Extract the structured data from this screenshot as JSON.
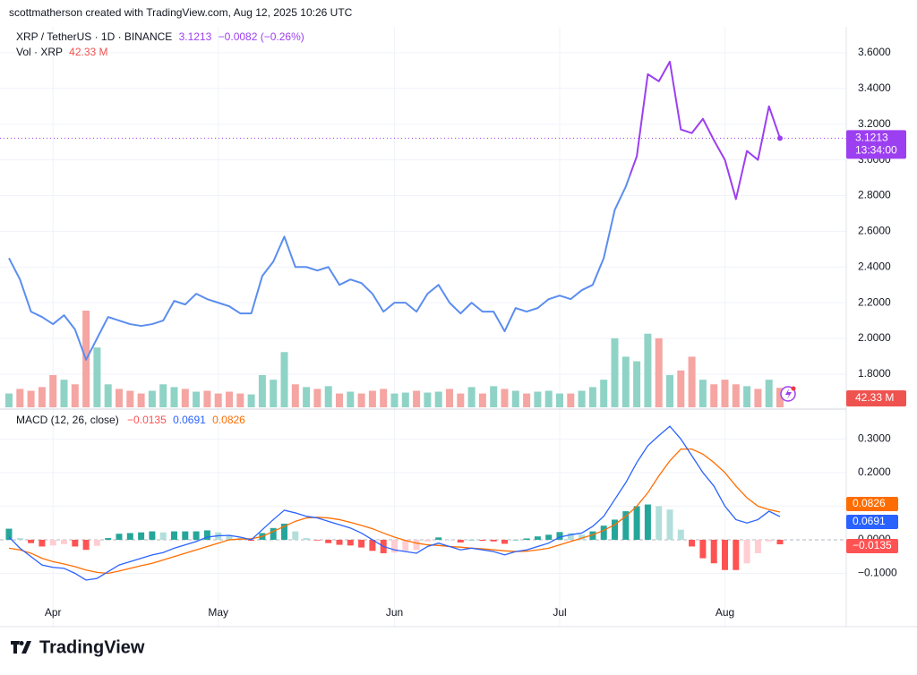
{
  "header": {
    "attribution": "scottmatherson created with TradingView.com, Aug 12, 2025 10:26 UTC"
  },
  "footer": {
    "logo": "TradingView"
  },
  "chart_data": [
    {
      "type": "line",
      "title": "XRP / TetherUS · 1D · BINANCE",
      "change": "−0.0082 (−0.26%)",
      "countdown": "13:34:00",
      "color": "#5b8def",
      "recent_color": "#9c3ff0",
      "grid": true,
      "categories": [
        null,
        null,
        null,
        null,
        "Apr",
        null,
        null,
        null,
        null,
        null,
        null,
        null,
        null,
        null,
        null,
        null,
        null,
        null,
        null,
        "May",
        null,
        null,
        null,
        null,
        null,
        null,
        null,
        null,
        null,
        null,
        null,
        null,
        null,
        null,
        null,
        "Jun",
        null,
        null,
        null,
        null,
        null,
        null,
        null,
        null,
        null,
        null,
        null,
        null,
        null,
        null,
        "Jul",
        null,
        null,
        null,
        null,
        null,
        null,
        null,
        null,
        null,
        null,
        null,
        null,
        null,
        null,
        "Aug",
        null,
        null,
        null,
        null,
        null
      ],
      "values": [
        2.45,
        2.33,
        2.15,
        2.12,
        2.08,
        2.13,
        2.05,
        1.88,
        2.0,
        2.12,
        2.1,
        2.08,
        2.07,
        2.08,
        2.1,
        2.21,
        2.19,
        2.25,
        2.22,
        2.2,
        2.18,
        2.14,
        2.14,
        2.35,
        2.43,
        2.57,
        2.4,
        2.4,
        2.38,
        2.4,
        2.3,
        2.33,
        2.31,
        2.25,
        2.15,
        2.2,
        2.2,
        2.15,
        2.25,
        2.3,
        2.2,
        2.14,
        2.2,
        2.15,
        2.15,
        2.04,
        2.17,
        2.15,
        2.17,
        2.22,
        2.24,
        2.22,
        2.27,
        2.3,
        2.45,
        2.72,
        2.85,
        3.02,
        3.48,
        3.44,
        3.55,
        3.17,
        3.15,
        3.23,
        3.11,
        3.0,
        2.78,
        3.05,
        3.0,
        3.3,
        3.1213
      ],
      "ylim": [
        1.614,
        3.745
      ],
      "yticks": [
        {
          "value": 1.8,
          "label": "1.8000"
        },
        {
          "value": 2.0,
          "label": "2.0000"
        },
        {
          "value": 2.2,
          "label": "2.2000"
        },
        {
          "value": 2.4,
          "label": "2.4000"
        },
        {
          "value": 2.6,
          "label": "2.6000"
        },
        {
          "value": 2.8,
          "label": "2.8000"
        },
        {
          "value": 3.0,
          "label": "3.0000"
        },
        {
          "value": 3.2,
          "label": "3.2000"
        },
        {
          "value": 3.4,
          "label": "3.4000"
        },
        {
          "value": 3.6,
          "label": "3.6000"
        }
      ],
      "volume": {
        "title": "Vol · XRP",
        "colors": {
          "up": "#8fd3c6",
          "down": "#f5a5a2",
          "tag": "#ef5350"
        },
        "values": [
          30,
          40,
          36,
          44,
          70,
          60,
          50,
          210,
          130,
          50,
          40,
          36,
          30,
          36,
          50,
          44,
          40,
          34,
          36,
          30,
          34,
          30,
          28,
          70,
          60,
          120,
          50,
          44,
          40,
          46,
          30,
          34,
          30,
          36,
          40,
          30,
          32,
          36,
          32,
          34,
          40,
          30,
          44,
          30,
          46,
          40,
          36,
          30,
          34,
          36,
          30,
          30,
          36,
          44,
          60,
          150,
          110,
          100,
          160,
          150,
          70,
          80,
          110,
          60,
          50,
          60,
          50,
          46,
          40,
          60,
          42.33
        ],
        "value_labels": [
          null,
          null,
          null,
          null,
          null,
          null,
          null,
          null,
          null,
          null,
          null,
          null,
          null,
          null,
          null,
          null,
          null,
          null,
          null,
          null,
          null,
          null,
          null,
          null,
          null,
          null,
          null,
          null,
          null,
          null,
          null,
          null,
          null,
          null,
          null,
          null,
          null,
          null,
          null,
          null,
          null,
          null,
          null,
          null,
          null,
          null,
          null,
          null,
          null,
          null,
          null,
          null,
          null,
          null,
          null,
          null,
          null,
          null,
          null,
          null,
          null,
          null,
          null,
          null,
          null,
          null,
          null,
          null,
          null,
          null,
          "42.33 M"
        ]
      }
    },
    {
      "type": "macd",
      "title": "MACD (12, 26, close)",
      "grid": true,
      "ylim": [
        -0.232,
        0.381
      ],
      "yticks": [
        {
          "value": -0.1,
          "label": "−0.1000"
        },
        {
          "value": 0,
          "label": "0.0000"
        },
        {
          "value": 0.1,
          "label": "0.1000"
        },
        {
          "value": 0.2,
          "label": "0.2000"
        },
        {
          "value": 0.3,
          "label": "0.3000"
        }
      ],
      "histogram": {
        "colors": {
          "up_rising": "#26a69a",
          "up_falling": "#b2dfdb",
          "down_falling": "#ff5252",
          "down_rising": "#ffcdd2"
        },
        "values": [
          0.033,
          0.005,
          -0.01,
          -0.02,
          -0.017,
          -0.013,
          -0.02,
          -0.03,
          -0.018,
          0.005,
          0.018,
          0.02,
          0.022,
          0.025,
          0.022,
          0.025,
          0.025,
          0.025,
          0.028,
          0.022,
          0.013,
          0.006,
          -0.003,
          0.02,
          0.035,
          0.048,
          0.025,
          0.005,
          -0.002,
          -0.01,
          -0.015,
          -0.017,
          -0.023,
          -0.033,
          -0.04,
          -0.038,
          -0.033,
          -0.03,
          -0.005,
          0.007,
          0,
          -0.008,
          0,
          -0.003,
          -0.005,
          -0.012,
          0,
          0.004,
          0.01,
          0.015,
          0.023,
          0.02,
          0.015,
          0.025,
          0.042,
          0.06,
          0.085,
          0.1,
          0.105,
          0.1,
          0.09,
          0.03,
          -0.02,
          -0.055,
          -0.07,
          -0.09,
          -0.09,
          -0.07,
          -0.04,
          -0.005,
          -0.0135
        ],
        "value_labels": [
          null,
          null,
          null,
          null,
          null,
          null,
          null,
          null,
          null,
          null,
          null,
          null,
          null,
          null,
          null,
          null,
          null,
          null,
          null,
          null,
          null,
          null,
          null,
          null,
          null,
          null,
          null,
          null,
          null,
          null,
          null,
          null,
          null,
          null,
          null,
          null,
          null,
          null,
          null,
          null,
          null,
          null,
          null,
          null,
          null,
          null,
          null,
          null,
          null,
          null,
          null,
          null,
          null,
          null,
          null,
          null,
          null,
          null,
          null,
          null,
          null,
          null,
          null,
          null,
          null,
          null,
          null,
          null,
          null,
          null,
          "−0.0135"
        ]
      },
      "macd": {
        "color": "#2962ff",
        "values": [
          0.008,
          -0.025,
          -0.05,
          -0.075,
          -0.082,
          -0.085,
          -0.1,
          -0.12,
          -0.115,
          -0.095,
          -0.075,
          -0.065,
          -0.055,
          -0.045,
          -0.038,
          -0.025,
          -0.015,
          -0.005,
          0.008,
          0.012,
          0.013,
          0.008,
          0.0,
          0.03,
          0.06,
          0.088,
          0.08,
          0.07,
          0.065,
          0.055,
          0.045,
          0.035,
          0.02,
          0.0,
          -0.02,
          -0.03,
          -0.035,
          -0.04,
          -0.02,
          -0.01,
          -0.02,
          -0.03,
          -0.025,
          -0.03,
          -0.035,
          -0.045,
          -0.035,
          -0.03,
          -0.02,
          -0.01,
          0.008,
          0.015,
          0.02,
          0.04,
          0.07,
          0.12,
          0.17,
          0.23,
          0.28,
          0.31,
          0.338,
          0.3,
          0.25,
          0.2,
          0.16,
          0.1,
          0.06,
          0.05,
          0.06,
          0.085,
          0.0691
        ]
      },
      "signal": {
        "color": "#ff6d00",
        "values": [
          -0.025,
          -0.03,
          -0.04,
          -0.055,
          -0.065,
          -0.072,
          -0.08,
          -0.09,
          -0.097,
          -0.1,
          -0.093,
          -0.085,
          -0.077,
          -0.07,
          -0.06,
          -0.05,
          -0.04,
          -0.03,
          -0.02,
          -0.01,
          0.0,
          0.002,
          0.003,
          0.01,
          0.025,
          0.04,
          0.055,
          0.065,
          0.067,
          0.065,
          0.06,
          0.052,
          0.043,
          0.033,
          0.02,
          0.008,
          -0.002,
          -0.01,
          -0.015,
          -0.017,
          -0.02,
          -0.022,
          -0.025,
          -0.027,
          -0.03,
          -0.033,
          -0.035,
          -0.034,
          -0.03,
          -0.025,
          -0.015,
          -0.005,
          0.005,
          0.015,
          0.028,
          0.045,
          0.07,
          0.1,
          0.14,
          0.19,
          0.235,
          0.27,
          0.27,
          0.255,
          0.23,
          0.2,
          0.16,
          0.125,
          0.1,
          0.09,
          0.0826
        ]
      }
    }
  ]
}
